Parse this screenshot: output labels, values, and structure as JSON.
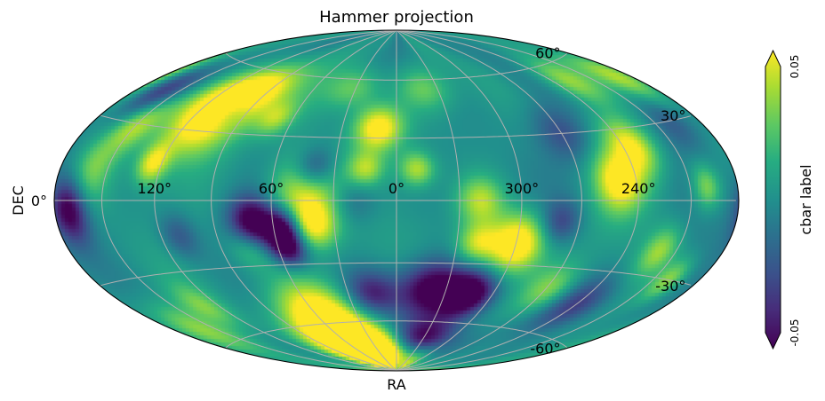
{
  "chart_data": {
    "type": "heatmap",
    "projection": "hammer",
    "title": "Hammer projection",
    "xlabel": "RA",
    "ylabel": "DEC",
    "ra_ticks": [
      {
        "label": "120°",
        "value": 120
      },
      {
        "label": "60°",
        "value": 60
      },
      {
        "label": "0°",
        "value": 0
      },
      {
        "label": "300°",
        "value": 300
      },
      {
        "label": "240°",
        "value": 240
      }
    ],
    "dec_ticks": [
      {
        "label": "60°",
        "value": 60
      },
      {
        "label": "30°",
        "value": 30
      },
      {
        "label": "0°",
        "value": 0
      },
      {
        "label": "-30°",
        "value": -30
      },
      {
        "label": "-60°",
        "value": -60
      }
    ],
    "grid": true,
    "colormap": "viridis",
    "colorbar": {
      "label": "cbar label",
      "min_label": "-0.05",
      "max_label": "0.05",
      "vmin": -0.05,
      "vmax": 0.05,
      "extend": "both"
    },
    "blobs": [
      {
        "ra": 110,
        "dec": 38,
        "value": 0.07,
        "size": 13
      },
      {
        "ra": 95,
        "dec": 50,
        "value": 0.045,
        "size": 10
      },
      {
        "ra": 150,
        "dec": 30,
        "value": 0.04,
        "size": 8
      },
      {
        "ra": 125,
        "dec": 15,
        "value": 0.045,
        "size": 6
      },
      {
        "ra": 160,
        "dec": 10,
        "value": 0.03,
        "size": 9
      },
      {
        "ra": 70,
        "dec": 38,
        "value": 0.03,
        "size": 6
      },
      {
        "ra": 10,
        "dec": 35,
        "value": 0.06,
        "size": 8
      },
      {
        "ra": 350,
        "dec": 15,
        "value": 0.04,
        "size": 6
      },
      {
        "ra": 15,
        "dec": 15,
        "value": 0.035,
        "size": 6
      },
      {
        "ra": 45,
        "dec": 5,
        "value": 0.05,
        "size": 12
      },
      {
        "ra": 40,
        "dec": -12,
        "value": 0.045,
        "size": 8
      },
      {
        "ra": 75,
        "dec": -22,
        "value": 0.025,
        "size": 7
      },
      {
        "ra": 55,
        "dec": -55,
        "value": 0.06,
        "size": 12
      },
      {
        "ra": 40,
        "dec": -72,
        "value": 0.05,
        "size": 9
      },
      {
        "ra": 10,
        "dec": -80,
        "value": 0.055,
        "size": 8
      },
      {
        "ra": 70,
        "dec": -70,
        "value": 0.035,
        "size": 10
      },
      {
        "ra": 320,
        "dec": 0,
        "value": 0.04,
        "size": 8
      },
      {
        "ra": 300,
        "dec": -20,
        "value": 0.07,
        "size": 10
      },
      {
        "ra": 320,
        "dec": -20,
        "value": 0.04,
        "size": 7
      },
      {
        "ra": 235,
        "dec": 22,
        "value": 0.05,
        "size": 9
      },
      {
        "ra": 250,
        "dec": 8,
        "value": 0.05,
        "size": 9
      },
      {
        "ra": 200,
        "dec": 5,
        "value": 0.035,
        "size": 6
      },
      {
        "ra": 200,
        "dec": -30,
        "value": 0.035,
        "size": 6
      },
      {
        "ra": 220,
        "dec": -20,
        "value": 0.035,
        "size": 7
      },
      {
        "ra": 188,
        "dec": 48,
        "value": 0.04,
        "size": 8
      },
      {
        "ra": 230,
        "dec": 52,
        "value": 0.035,
        "size": 8
      },
      {
        "ra": 268,
        "dec": -40,
        "value": 0.03,
        "size": 8
      },
      {
        "ra": 160,
        "dec": -52,
        "value": 0.035,
        "size": 9
      },
      {
        "ra": 130,
        "dec": -45,
        "value": 0.025,
        "size": 7
      },
      {
        "ra": 30,
        "dec": 55,
        "value": 0.03,
        "size": 8
      },
      {
        "ra": 340,
        "dec": 55,
        "value": 0.025,
        "size": 8
      },
      {
        "ra": 40,
        "dec": 15,
        "value": -0.04,
        "size": 7
      },
      {
        "ra": 70,
        "dec": -10,
        "value": -0.06,
        "size": 8
      },
      {
        "ra": 55,
        "dec": -12,
        "value": -0.05,
        "size": 6
      },
      {
        "ra": 55,
        "dec": -22,
        "value": -0.055,
        "size": 6
      },
      {
        "ra": 340,
        "dec": -43,
        "value": -0.06,
        "size": 10
      },
      {
        "ra": 315,
        "dec": -45,
        "value": -0.06,
        "size": 8
      },
      {
        "ra": 330,
        "dec": -70,
        "value": -0.06,
        "size": 8
      },
      {
        "ra": 15,
        "dec": -45,
        "value": -0.04,
        "size": 8
      },
      {
        "ra": 170,
        "dec": -3,
        "value": -0.055,
        "size": 8
      },
      {
        "ra": 160,
        "dec": 42,
        "value": -0.035,
        "size": 8
      },
      {
        "ra": 100,
        "dec": 40,
        "value": -0.03,
        "size": 6
      },
      {
        "ra": 240,
        "dec": -45,
        "value": -0.03,
        "size": 9
      },
      {
        "ra": 270,
        "dec": 30,
        "value": -0.025,
        "size": 9
      },
      {
        "ra": 280,
        "dec": -10,
        "value": -0.03,
        "size": 7
      },
      {
        "ra": 20,
        "dec": 0,
        "value": -0.02,
        "size": 8
      },
      {
        "ra": 110,
        "dec": -15,
        "value": -0.025,
        "size": 7
      },
      {
        "ra": 200,
        "dec": 30,
        "value": -0.02,
        "size": 8
      }
    ]
  }
}
